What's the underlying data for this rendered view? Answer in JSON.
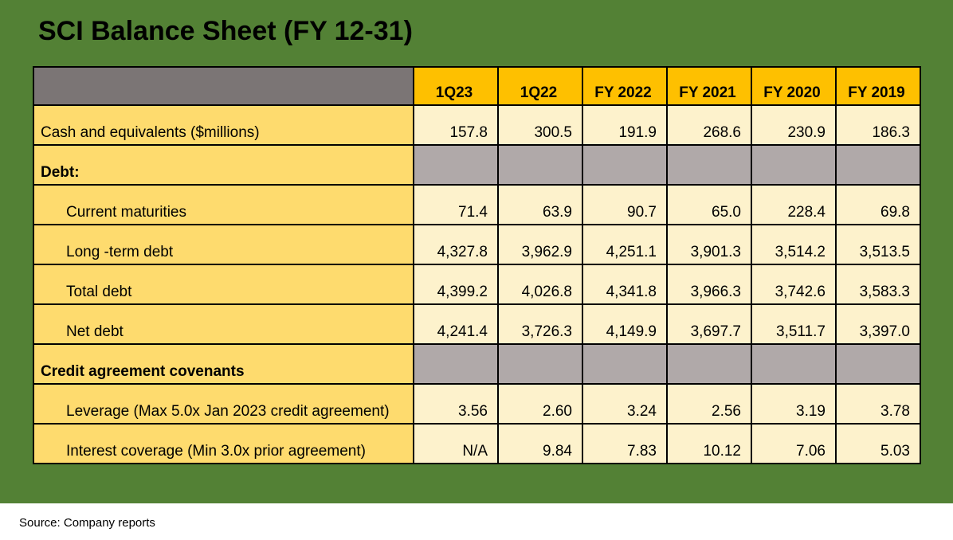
{
  "header": {
    "title": "SCI Balance Sheet (FY 12-31)"
  },
  "table": {
    "columns": [
      "1Q23",
      "1Q22",
      "FY 2022",
      "FY 2021",
      "FY 2020",
      "FY 2019"
    ],
    "rows": [
      {
        "label": "Cash and equivalents ($millions)",
        "values": [
          "157.8",
          "300.5",
          "191.9",
          "268.6",
          "230.9",
          "186.3"
        ]
      },
      {
        "label": "Debt:"
      },
      {
        "label": "Current maturities",
        "values": [
          "71.4",
          "63.9",
          "90.7",
          "65.0",
          "228.4",
          "69.8"
        ]
      },
      {
        "label": "Long -term debt",
        "values": [
          "4,327.8",
          "3,962.9",
          "4,251.1",
          "3,901.3",
          "3,514.2",
          "3,513.5"
        ]
      },
      {
        "label": "Total debt",
        "values": [
          "4,399.2",
          "4,026.8",
          "4,341.8",
          "3,966.3",
          "3,742.6",
          "3,583.3"
        ]
      },
      {
        "label": "Net debt",
        "values": [
          "4,241.4",
          "3,726.3",
          "4,149.9",
          "3,697.7",
          "3,511.7",
          "3,397.0"
        ]
      },
      {
        "label": "Credit agreement covenants"
      },
      {
        "label": "Leverage (Max 5.0x Jan 2023 credit agreement)",
        "values": [
          "3.56",
          "2.60",
          "3.24",
          "2.56",
          "3.19",
          "3.78"
        ]
      },
      {
        "label": "Interest coverage (Min 3.0x prior agreement)",
        "values": [
          "N/A",
          "9.84",
          "7.83",
          "10.12",
          "7.06",
          "5.03"
        ]
      }
    ]
  },
  "footer": {
    "source": "Source: Company reports"
  }
}
